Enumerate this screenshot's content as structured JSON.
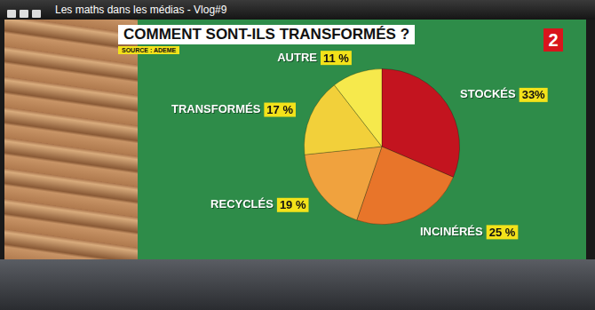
{
  "window_title": "Les maths dans les médias - Vlog#9",
  "channel": "2",
  "chart_data": {
    "type": "pie",
    "title": "COMMENT SONT-ILS TRANSFORMÉS ?",
    "subtitle": "SOURCE : ADEME",
    "categories": [
      "STOCKÉS",
      "INCINÉRÉS",
      "RECYCLÉS",
      "TRANSFORMÉS",
      "AUTRE"
    ],
    "values": [
      33,
      25,
      19,
      17,
      11
    ],
    "value_labels": [
      "33%",
      "25 %",
      "19 %",
      "17 %",
      "11 %"
    ],
    "colors": [
      "#c3141f",
      "#e8752a",
      "#f0a23e",
      "#f2d03a",
      "#f6e94c"
    ],
    "data_labels": true
  }
}
